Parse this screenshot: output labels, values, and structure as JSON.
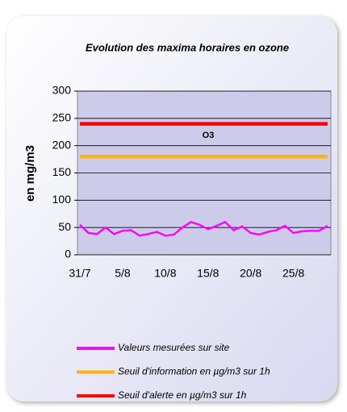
{
  "chart_data": {
    "type": "line",
    "title": "Evolution des maxima horaires en ozone",
    "ylabel": "en mg/m3",
    "annotation": "O3",
    "categories": [
      "31/7",
      null,
      null,
      null,
      null,
      "5/8",
      null,
      null,
      null,
      null,
      "10/8",
      null,
      null,
      null,
      null,
      "15/8",
      null,
      null,
      null,
      null,
      "20/8",
      null,
      null,
      null,
      null,
      "25/8",
      null,
      null,
      null,
      null
    ],
    "series": [
      {
        "name": "Valeurs mesurées sur site",
        "color": "#ff00ff",
        "values": [
          55,
          40,
          38,
          50,
          38,
          44,
          45,
          35,
          38,
          42,
          35,
          37,
          50,
          60,
          55,
          47,
          53,
          60,
          45,
          52,
          40,
          37,
          42,
          45,
          53,
          40,
          43,
          44,
          44,
          53
        ]
      },
      {
        "name": "Seuil d'information en µg/m3 sur 1h",
        "color": "#ffb400",
        "values": [
          180,
          180,
          180,
          180,
          180,
          180,
          180,
          180,
          180,
          180,
          180,
          180,
          180,
          180,
          180,
          180,
          180,
          180,
          180,
          180,
          180,
          180,
          180,
          180,
          180,
          180,
          180,
          180,
          180,
          180
        ]
      },
      {
        "name": "Seuil d'alerte en µg/m3 sur 1h",
        "color": "#ff0000",
        "values": [
          240,
          240,
          240,
          240,
          240,
          240,
          240,
          240,
          240,
          240,
          240,
          240,
          240,
          240,
          240,
          240,
          240,
          240,
          240,
          240,
          240,
          240,
          240,
          240,
          240,
          240,
          240,
          240,
          240,
          240
        ]
      }
    ],
    "ylim": [
      0,
      300
    ],
    "yticks": [
      0,
      50,
      100,
      150,
      200,
      250,
      300
    ],
    "grid": true
  }
}
